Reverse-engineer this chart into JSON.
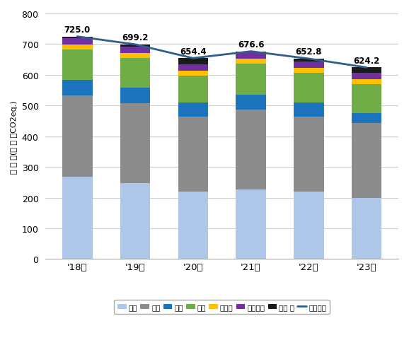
{
  "years": [
    "'18년",
    "'19년",
    "'20년",
    "'21년",
    "'22년",
    "'23년"
  ],
  "totals": [
    725.0,
    699.2,
    654.4,
    676.6,
    652.8,
    624.2
  ],
  "segments": {
    "전환": [
      269.0,
      248.0,
      220.0,
      226.0,
      220.0,
      199.0
    ],
    "산업": [
      265.0,
      260.0,
      243.0,
      260.0,
      243.0,
      243.0
    ],
    "건물": [
      50.0,
      50.0,
      48.0,
      50.0,
      46.0,
      34.0
    ],
    "수송": [
      98.0,
      96.0,
      86.0,
      100.0,
      97.0,
      93.0
    ],
    "폐기물": [
      17.0,
      17.0,
      17.0,
      17.0,
      17.0,
      17.0
    ],
    "농축수산": [
      21.0,
      21.0,
      21.0,
      21.0,
      21.0,
      21.0
    ],
    "탈루 등": [
      5.0,
      7.2,
      19.4,
      2.6,
      8.8,
      17.2
    ]
  },
  "colors": {
    "전환": "#aec6e8",
    "산업": "#8c8c8c",
    "건물": "#1c75bc",
    "수송": "#70ad47",
    "폐기물": "#ffc000",
    "농축수산": "#7030a0",
    "탈루 등": "#1a1a1a"
  },
  "line_color": "#2e5f8a",
  "ylabel": "배 출 량(백 만 톤CO2eq.)",
  "ylim": [
    0,
    800
  ],
  "yticks": [
    0,
    100,
    200,
    300,
    400,
    500,
    600,
    700,
    800
  ],
  "background_color": "#ffffff",
  "grid_color": "#d0d0d0",
  "legend_labels": [
    "전환",
    "산업",
    "건물",
    "수송",
    "폐기물",
    "농축수산",
    "탈루 등",
    "총배출량"
  ]
}
